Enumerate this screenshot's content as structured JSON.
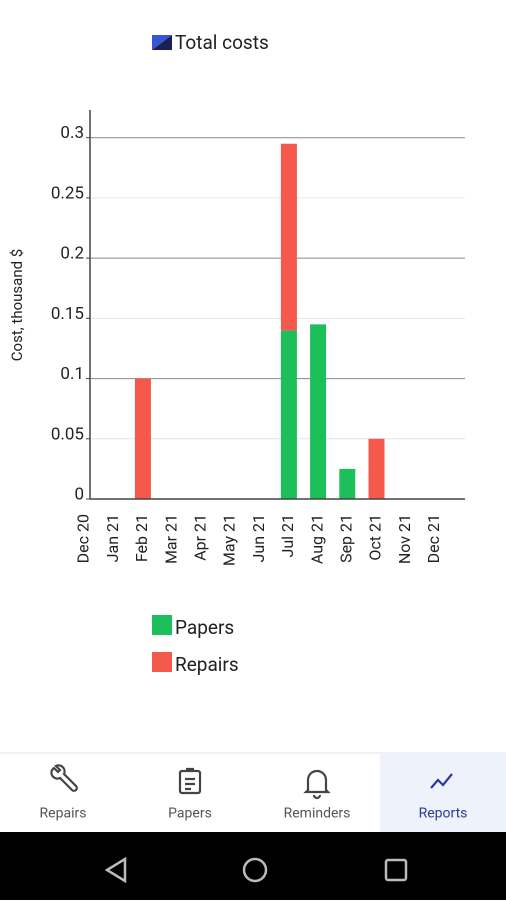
{
  "chart_data": {
    "type": "bar",
    "stacked": true,
    "title": "Total costs",
    "y_label": "Cost, thousand $",
    "categories": [
      "Dec 20",
      "Jan 21",
      "Feb 21",
      "Mar 21",
      "Apr 21",
      "May 21",
      "Jun 21",
      "Jul 21",
      "Aug 21",
      "Sep 21",
      "Oct 21",
      "Nov 21",
      "Dec 21"
    ],
    "series": [
      {
        "name": "Papers",
        "color": "#1dbf5b",
        "values": [
          0,
          0,
          0,
          0,
          0,
          0,
          0,
          0.14,
          0.145,
          0.025,
          0,
          0,
          0
        ]
      },
      {
        "name": "Repairs",
        "color": "#f4594b",
        "values": [
          0,
          0,
          0.1,
          0,
          0,
          0,
          0,
          0.155,
          0,
          0,
          0.05,
          0,
          0
        ]
      }
    ],
    "ylim": [
      0,
      0.323
    ],
    "yticks": [
      0,
      0.05,
      0.1,
      0.15,
      0.2,
      0.25,
      0.3
    ],
    "grid": true
  },
  "nav": {
    "items": [
      {
        "label": "Repairs",
        "selected": false
      },
      {
        "label": "Papers",
        "selected": false
      },
      {
        "label": "Reminders",
        "selected": false
      },
      {
        "label": "Reports",
        "selected": true
      }
    ]
  }
}
